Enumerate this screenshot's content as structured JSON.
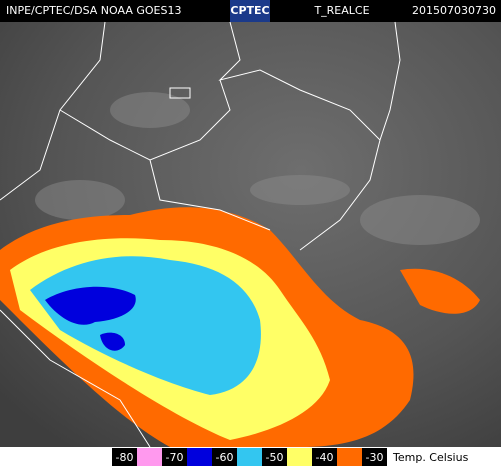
{
  "header": {
    "source": "INPE/CPTEC/DSA NOAA GOES13",
    "logo": "CPTEC",
    "product": "T_REALCE",
    "timestamp": "201507030730"
  },
  "legend": {
    "labels": [
      "-80",
      "-70",
      "-60",
      "-50",
      "-40",
      "-30"
    ],
    "colors": [
      "#ff99ee",
      "#0000dd",
      "#33c6f0",
      "#ffff66",
      "#ff6a00"
    ],
    "unit": "Temp. Celsius"
  }
}
